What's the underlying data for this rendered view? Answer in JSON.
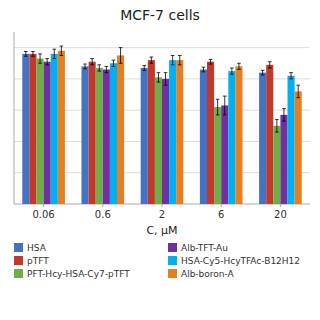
{
  "chart_data": {
    "type": "bar",
    "title": "MCF-7 cells",
    "xlabel": "C, μM",
    "categories": [
      "0.06",
      "0.6",
      "2",
      "6",
      "20"
    ],
    "series": [
      {
        "name": "HSA",
        "color": "#4472C4",
        "values": [
          96,
          88,
          87,
          86,
          84
        ],
        "errors": [
          1.5,
          1.5,
          1.5,
          1.5,
          1.5
        ]
      },
      {
        "name": "pTFT",
        "color": "#C0392B",
        "values": [
          96,
          91,
          92,
          91,
          89
        ],
        "errors": [
          1.5,
          2,
          2,
          1.5,
          2
        ]
      },
      {
        "name": "PFT-Hcy-HSA-Cy7-pTFT",
        "color": "#70AD47",
        "values": [
          93,
          87,
          81,
          62,
          50
        ],
        "errors": [
          3,
          2,
          3,
          5,
          4
        ]
      },
      {
        "name": "Alb-TFT-Au",
        "color": "#7030A0",
        "values": [
          91,
          86,
          80,
          63,
          57
        ],
        "errors": [
          2,
          2,
          4,
          6,
          4
        ]
      },
      {
        "name": "HSA-Cy5-HcyTFAc-B12H12",
        "color": "#00B0F0",
        "values": [
          96,
          90,
          92,
          85,
          82
        ],
        "errors": [
          3,
          2,
          3,
          2,
          2
        ]
      },
      {
        "name": "Alb-boron-A",
        "color": "#E67E22",
        "values": [
          98,
          95,
          92,
          88,
          72
        ],
        "errors": [
          3,
          5,
          3,
          2,
          4
        ]
      }
    ],
    "ylim": [
      0,
      110
    ],
    "yticks": [
      20,
      40,
      60,
      80,
      100
    ],
    "grid": true,
    "tick_labels": "x",
    "legend": "bottom"
  }
}
